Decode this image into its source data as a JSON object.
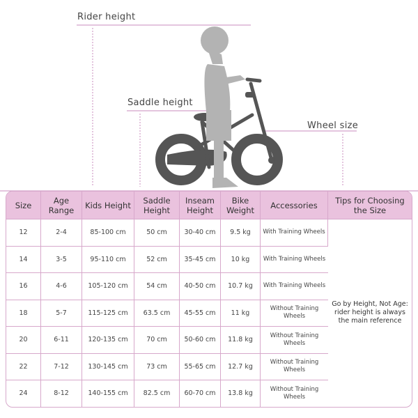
{
  "diagram": {
    "labels": {
      "rider_height": "Rider height",
      "saddle_height": "Saddle height",
      "wheel_size": "Wheel size"
    },
    "colors": {
      "accent": "#c98bbd",
      "header_bg": "#eac2de",
      "bike": "#555555",
      "rider": "#b3b3b3"
    }
  },
  "table": {
    "headers": [
      "Size",
      "Age Range",
      "Kids Height",
      "Saddle Height",
      "Inseam Height",
      "Bike Weight",
      "Accessories",
      "Tips for Choosing the Size"
    ],
    "rows": [
      [
        "12",
        "2-4",
        "85-100 cm",
        "50 cm",
        "30-40 cm",
        "9.5 kg",
        "With Training Wheels"
      ],
      [
        "14",
        "3-5",
        "95-110 cm",
        "52 cm",
        "35-45 cm",
        "10 kg",
        "With Training Wheels"
      ],
      [
        "16",
        "4-6",
        "105-120 cm",
        "54 cm",
        "40-50 cm",
        "10.7 kg",
        "With Training Wheels"
      ],
      [
        "18",
        "5-7",
        "115-125 cm",
        "63.5 cm",
        "45-55 cm",
        "11 kg",
        "Without Training Wheels"
      ],
      [
        "20",
        "6-11",
        "120-135 cm",
        "70 cm",
        "50-60 cm",
        "11.8 kg",
        "Without Training Wheels"
      ],
      [
        "22",
        "7-12",
        "130-145 cm",
        "73 cm",
        "55-65 cm",
        "12.7 kg",
        "Without Training Wheels"
      ],
      [
        "24",
        "8-12",
        "140-155 cm",
        "82.5 cm",
        "60-70 cm",
        "13.8 kg",
        "Without Training Wheels"
      ]
    ],
    "tip": "Go by Height, Not Age: rider height is always the main reference"
  }
}
